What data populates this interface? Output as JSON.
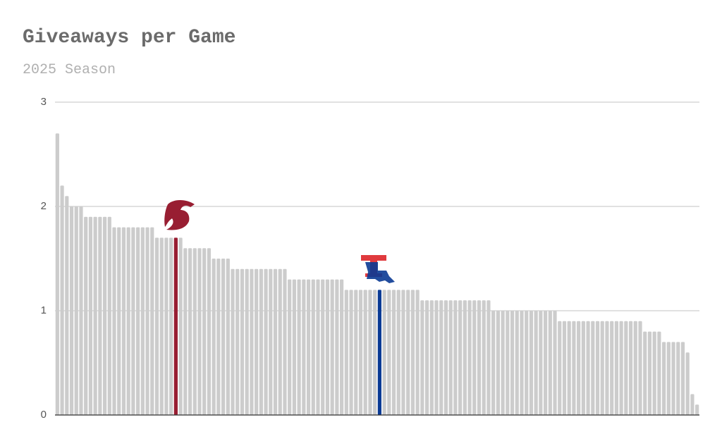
{
  "chart_data": {
    "type": "bar",
    "title": "Giveaways per Game",
    "subtitle": "2025 Season",
    "values": [
      2.7,
      2.2,
      2.1,
      2.0,
      2.0,
      2.0,
      1.9,
      1.9,
      1.9,
      1.9,
      1.9,
      1.9,
      1.8,
      1.8,
      1.8,
      1.8,
      1.8,
      1.8,
      1.8,
      1.8,
      1.8,
      1.7,
      1.7,
      1.7,
      1.7,
      1.7,
      1.7,
      1.6,
      1.6,
      1.6,
      1.6,
      1.6,
      1.6,
      1.5,
      1.5,
      1.5,
      1.5,
      1.4,
      1.4,
      1.4,
      1.4,
      1.4,
      1.4,
      1.4,
      1.4,
      1.4,
      1.4,
      1.4,
      1.4,
      1.3,
      1.3,
      1.3,
      1.3,
      1.3,
      1.3,
      1.3,
      1.3,
      1.3,
      1.3,
      1.3,
      1.3,
      1.2,
      1.2,
      1.2,
      1.2,
      1.2,
      1.2,
      1.2,
      1.2,
      1.2,
      1.2,
      1.2,
      1.2,
      1.2,
      1.2,
      1.2,
      1.2,
      1.1,
      1.1,
      1.1,
      1.1,
      1.1,
      1.1,
      1.1,
      1.1,
      1.1,
      1.1,
      1.1,
      1.1,
      1.1,
      1.1,
      1.1,
      1.0,
      1.0,
      1.0,
      1.0,
      1.0,
      1.0,
      1.0,
      1.0,
      1.0,
      1.0,
      1.0,
      1.0,
      1.0,
      1.0,
      0.9,
      0.9,
      0.9,
      0.9,
      0.9,
      0.9,
      0.9,
      0.9,
      0.9,
      0.9,
      0.9,
      0.9,
      0.9,
      0.9,
      0.9,
      0.9,
      0.9,
      0.9,
      0.8,
      0.8,
      0.8,
      0.8,
      0.7,
      0.7,
      0.7,
      0.7,
      0.7,
      0.6,
      0.2,
      0.1
    ],
    "color": "#cccccc",
    "highlight_colors": {
      "25": "#981e32",
      "68": "#0a3a94"
    },
    "ylim": [
      0,
      3
    ],
    "yticks": [
      0,
      1,
      2,
      3
    ],
    "grid": true
  }
}
